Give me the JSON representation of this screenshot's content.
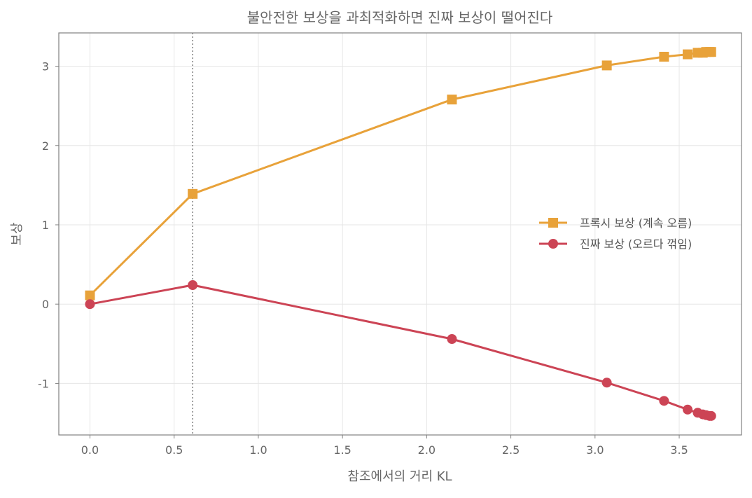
{
  "chart_data": {
    "type": "line",
    "title": "불안전한 보상을 과최적화하면 진짜 보상이 떨어진다",
    "xlabel": "참조에서의 거리 KL",
    "ylabel": "보상",
    "xlim": [
      -0.185,
      3.87
    ],
    "ylim": [
      -1.65,
      3.42
    ],
    "xticks": [
      0.0,
      0.5,
      1.0,
      1.5,
      2.0,
      2.5,
      3.0,
      3.5
    ],
    "xtick_labels": [
      "0.0",
      "0.5",
      "1.0",
      "1.5",
      "2.0",
      "2.5",
      "3.0",
      "3.5"
    ],
    "yticks": [
      -1,
      0,
      1,
      2,
      3
    ],
    "ytick_labels": [
      "-1",
      "0",
      "1",
      "2",
      "3"
    ],
    "grid": true,
    "legend_position": "center-right",
    "vline": {
      "x": 0.61,
      "style": "dotted",
      "color": "#888888"
    },
    "series": [
      {
        "name": "프록시 보상 (계속 오름)",
        "color": "#E8A23A",
        "marker": "square",
        "x": [
          0.0,
          0.61,
          2.15,
          3.07,
          3.41,
          3.55,
          3.61,
          3.64,
          3.66,
          3.68,
          3.69
        ],
        "y": [
          0.11,
          1.39,
          2.58,
          3.01,
          3.12,
          3.15,
          3.17,
          3.17,
          3.18,
          3.18,
          3.18
        ]
      },
      {
        "name": "진짜 보상 (오르다 꺾임)",
        "color": "#CC4455",
        "marker": "circle",
        "x": [
          0.0,
          0.61,
          2.15,
          3.07,
          3.41,
          3.55,
          3.61,
          3.64,
          3.66,
          3.68,
          3.69
        ],
        "y": [
          0.0,
          0.24,
          -0.44,
          -0.99,
          -1.22,
          -1.33,
          -1.37,
          -1.39,
          -1.4,
          -1.41,
          -1.41
        ]
      }
    ]
  }
}
